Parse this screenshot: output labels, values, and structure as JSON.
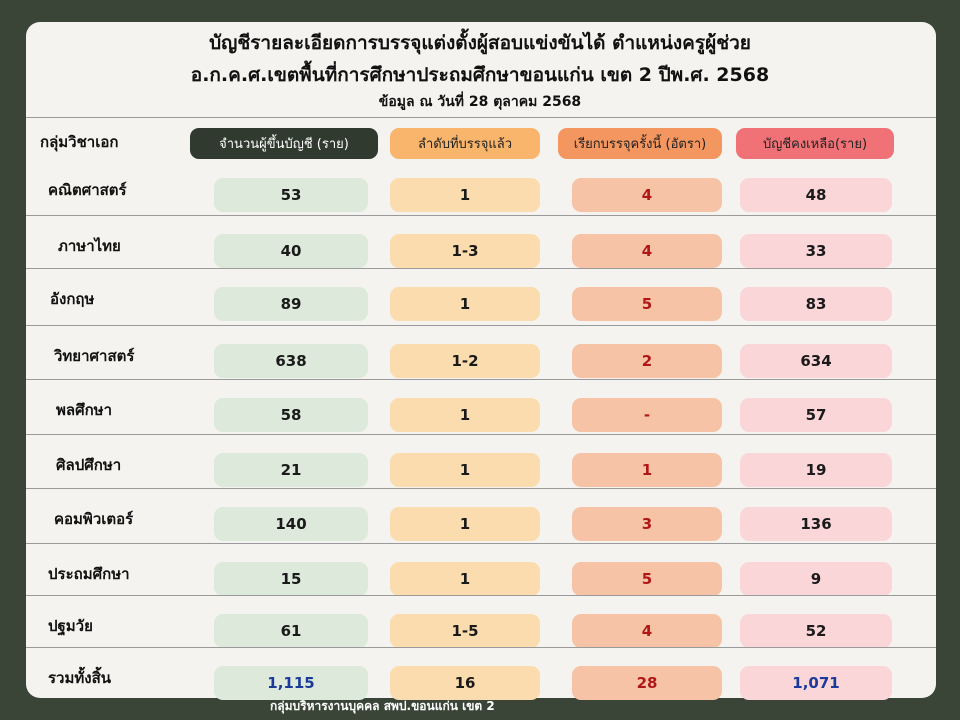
{
  "title_line1": "บัญชีรายละเอียดการบรรจุแต่งตั้งผู้สอบแข่งขันได้ ตำแหน่งครูผู้ช่วย",
  "title_line2": "อ.ก.ค.ศ.เขตพื้นที่การศึกษาประถมศึกษาขอนแก่น เขต 2  ปีพ.ศ. 2568",
  "title_line3": "ข้อมูล ณ วันที่ 28 ตุลาคม 2568",
  "header": {
    "group": "กลุ่มวิชาเอก",
    "listed": "จำนวนผู้ขึ้นบัญชี (ราย)",
    "appointed_order": "ลำดับที่บรรจุแล้ว",
    "called_now": "เรียกบรรจุครั้งนี้ (อัตรา)",
    "remaining": "บัญชีคงเหลือ(ราย)"
  },
  "colors": {
    "background": "#3a4538",
    "card": "#f4f3ef",
    "listed_bg": "#ddeadb",
    "order_bg": "#fbdcae",
    "called_bg": "#f7c3a7",
    "remaining_bg": "#fad6d9",
    "header_listed": "#313a2f",
    "header_order": "#f8b56b",
    "header_called": "#f3965f",
    "header_remaining": "#f07277",
    "red_text": "#b01818",
    "blue_text": "#1c3a9c"
  },
  "rows": [
    {
      "group": "คณิตศาสตร์",
      "listed": "53",
      "order": "1",
      "called": "4",
      "remaining": "48"
    },
    {
      "group": "ภาษาไทย",
      "listed": "40",
      "order": "1-3",
      "called": "4",
      "remaining": "33"
    },
    {
      "group": "อังกฤษ",
      "listed": "89",
      "order": "1",
      "called": "5",
      "remaining": "83"
    },
    {
      "group": "วิทยาศาสตร์",
      "listed": "638",
      "order": "1-2",
      "called": "2",
      "remaining": "634"
    },
    {
      "group": "พลศึกษา",
      "listed": "58",
      "order": "1",
      "called": "-",
      "remaining": "57"
    },
    {
      "group": "ศิลปศึกษา",
      "listed": "21",
      "order": "1",
      "called": "1",
      "remaining": "19"
    },
    {
      "group": "คอมพิวเตอร์",
      "listed": "140",
      "order": "1",
      "called": "3",
      "remaining": "136"
    },
    {
      "group": "ประถมศึกษา",
      "listed": "15",
      "order": "1",
      "called": "5",
      "remaining": "9"
    },
    {
      "group": "ปฐมวัย",
      "listed": "61",
      "order": "1-5",
      "called": "4",
      "remaining": "52"
    }
  ],
  "total": {
    "group": "รวมทั้งสิ้น",
    "listed": "1,115",
    "order": "16",
    "called": "28",
    "remaining": "1,071"
  },
  "footer": "กลุ่มบริหารงานบุคคล สพป.ขอนแก่น เขต 2"
}
